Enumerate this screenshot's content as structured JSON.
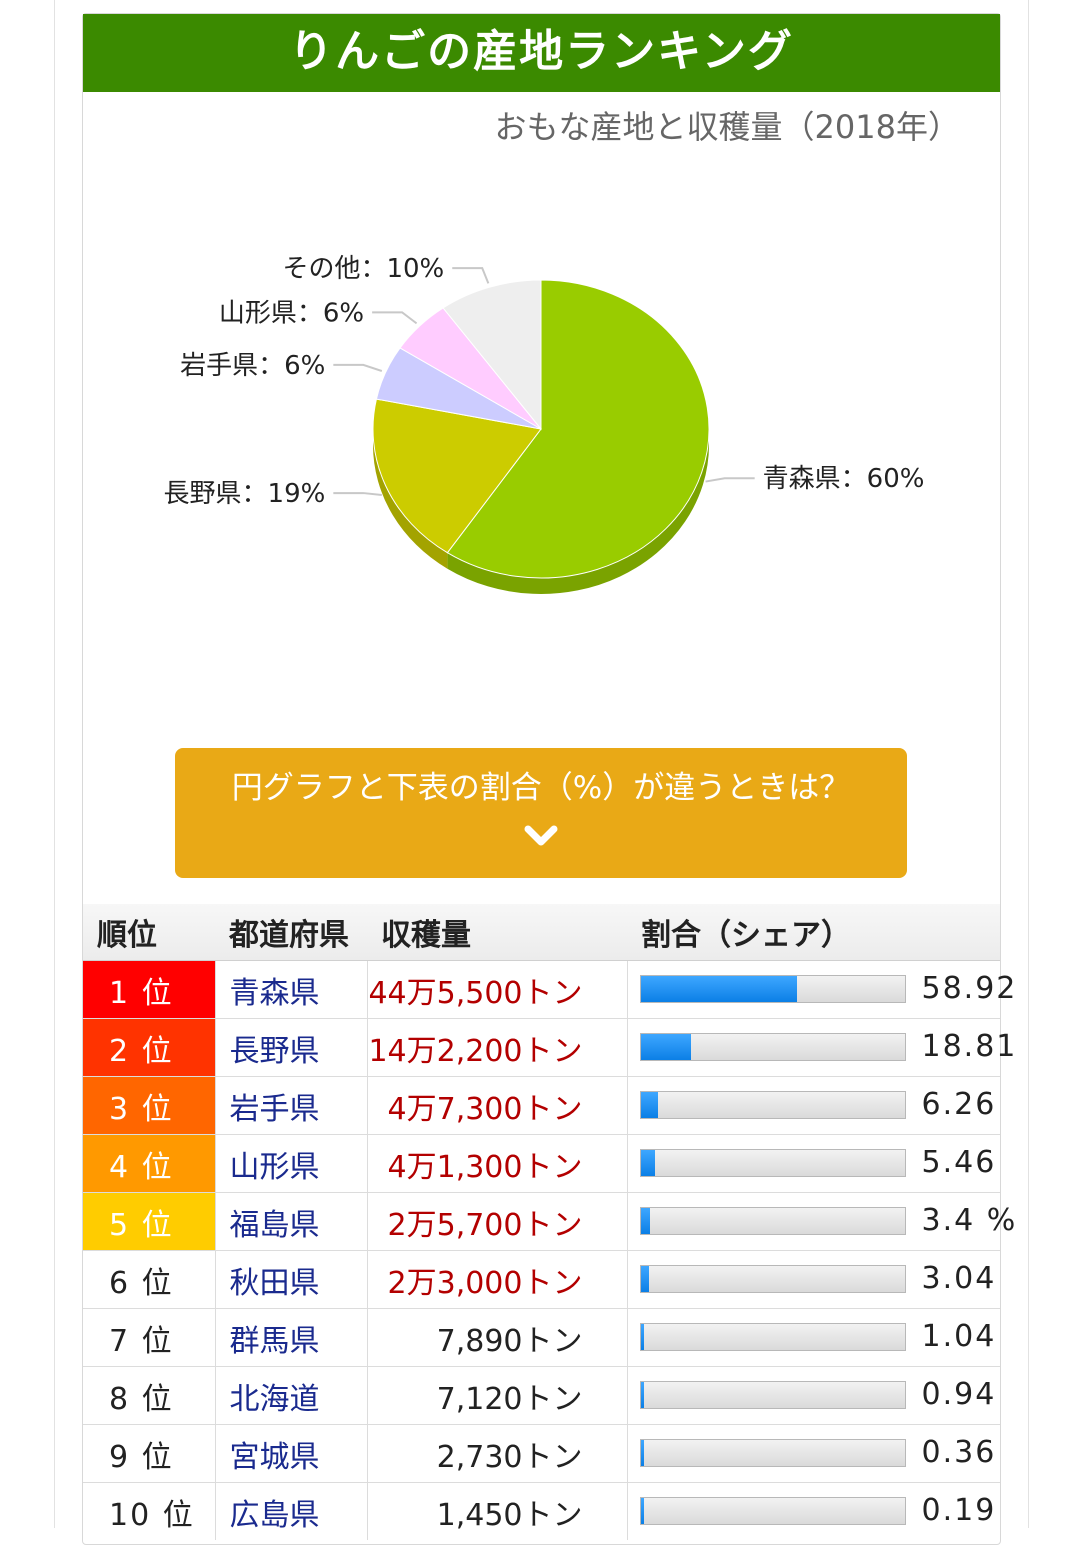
{
  "title": "りんごの産地ランキング",
  "subtitle": "おもな産地と収穫量（2018年）",
  "chart_data": {
    "type": "pie",
    "slices": [
      {
        "name": "青森県",
        "label": "青森県：60%",
        "value": 60,
        "color": "#99cc00",
        "side": "#7aa300"
      },
      {
        "name": "長野県",
        "label": "長野県：19%",
        "value": 19,
        "color": "#cccc00",
        "side": "#a3a300"
      },
      {
        "name": "岩手県",
        "label": "岩手県：6%",
        "value": 6,
        "color": "#ccccff",
        "side": "#a3a3cc"
      },
      {
        "name": "山形県",
        "label": "山形県：6%",
        "value": 6,
        "color": "#ffccff",
        "side": "#cca3cc"
      },
      {
        "name": "その他",
        "label": "その他：10%",
        "value": 10,
        "color": "#eeeeee",
        "side": "#bebebe"
      }
    ]
  },
  "accordion": {
    "label": "円グラフと下表の割合（%）が違うときは？",
    "icon": "chevron-down-icon"
  },
  "table": {
    "headers": [
      "順位",
      "都道府県",
      "収穫量",
      "割合（シェア）"
    ],
    "rows": [
      {
        "rank": "1 位",
        "pref": "青森県",
        "amount": "44万5,500トン",
        "share": 58.92,
        "share_text": "58.92",
        "rank_bg": "#ff0000",
        "amount_red": true
      },
      {
        "rank": "2 位",
        "pref": "長野県",
        "amount": "14万2,200トン",
        "share": 18.81,
        "share_text": "18.81",
        "rank_bg": "#ff3300",
        "amount_red": true
      },
      {
        "rank": "3 位",
        "pref": "岩手県",
        "amount": "4万7,300トン",
        "share": 6.26,
        "share_text": "6.26",
        "rank_bg": "#ff6600",
        "amount_red": true
      },
      {
        "rank": "4 位",
        "pref": "山形県",
        "amount": "4万1,300トン",
        "share": 5.46,
        "share_text": "5.46",
        "rank_bg": "#ff9900",
        "amount_red": true
      },
      {
        "rank": "5 位",
        "pref": "福島県",
        "amount": "2万5,700トン",
        "share": 3.4,
        "share_text": "3.4 %",
        "rank_bg": "#ffcc00",
        "amount_red": true
      },
      {
        "rank": "6 位",
        "pref": "秋田県",
        "amount": "2万3,000トン",
        "share": 3.04,
        "share_text": "3.04",
        "rank_bg": "",
        "amount_red": true
      },
      {
        "rank": "7 位",
        "pref": "群馬県",
        "amount": "7,890トン",
        "share": 1.04,
        "share_text": "1.04",
        "rank_bg": "",
        "amount_red": false
      },
      {
        "rank": "8 位",
        "pref": "北海道",
        "amount": "7,120トン",
        "share": 0.94,
        "share_text": "0.94",
        "rank_bg": "",
        "amount_red": false
      },
      {
        "rank": "9 位",
        "pref": "宮城県",
        "amount": "2,730トン",
        "share": 0.36,
        "share_text": "0.36",
        "rank_bg": "",
        "amount_red": false
      },
      {
        "rank": "10 位",
        "pref": "広島県",
        "amount": "1,450トン",
        "share": 0.19,
        "share_text": "0.19",
        "rank_bg": "",
        "amount_red": false
      }
    ]
  }
}
